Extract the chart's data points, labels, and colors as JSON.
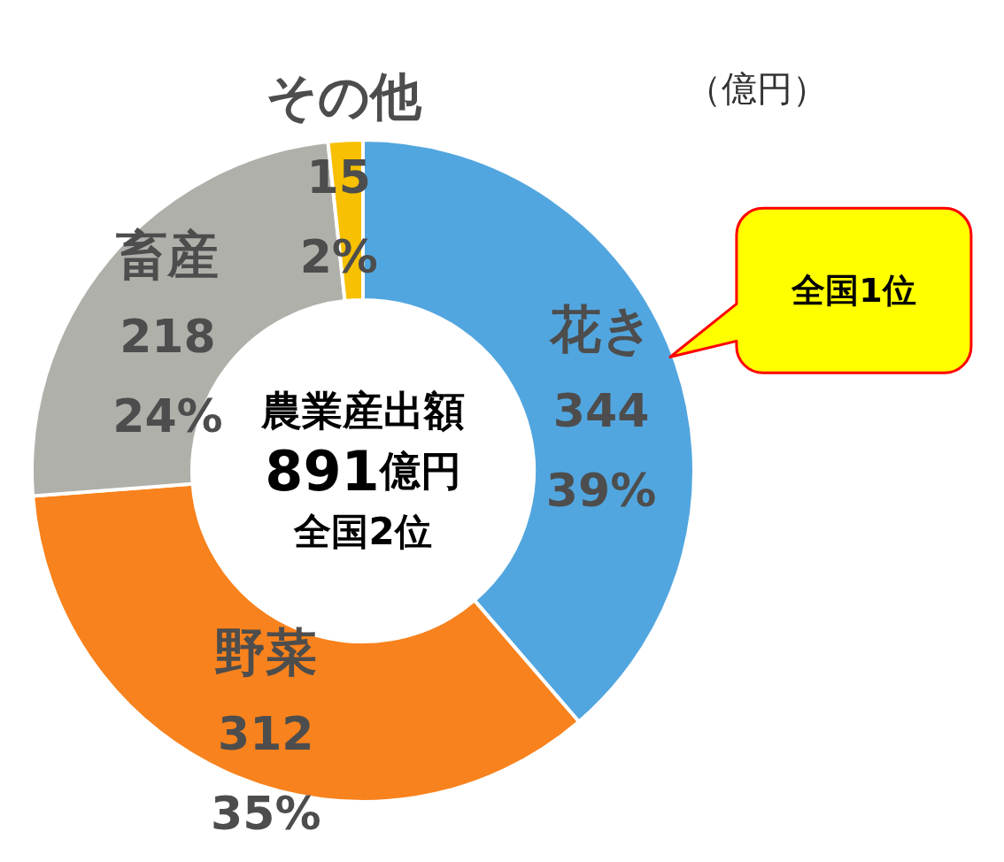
{
  "chart_data": {
    "type": "donut",
    "categories": [
      "花き",
      "野菜",
      "畜産",
      "その他"
    ],
    "values": [
      344,
      312,
      218,
      15
    ],
    "colors": [
      "#52a6df",
      "#f8821d",
      "#b0b0ab",
      "#f7c000"
    ],
    "value_labels": [
      "344\n39%",
      "312\n35%",
      "218\n24%",
      "15\n2%"
    ],
    "annotations": [
      "（億円）",
      "農業産出額",
      "891億円",
      "全国2位",
      {
        "text": "全国1位",
        "x": "花き"
      }
    ]
  }
}
